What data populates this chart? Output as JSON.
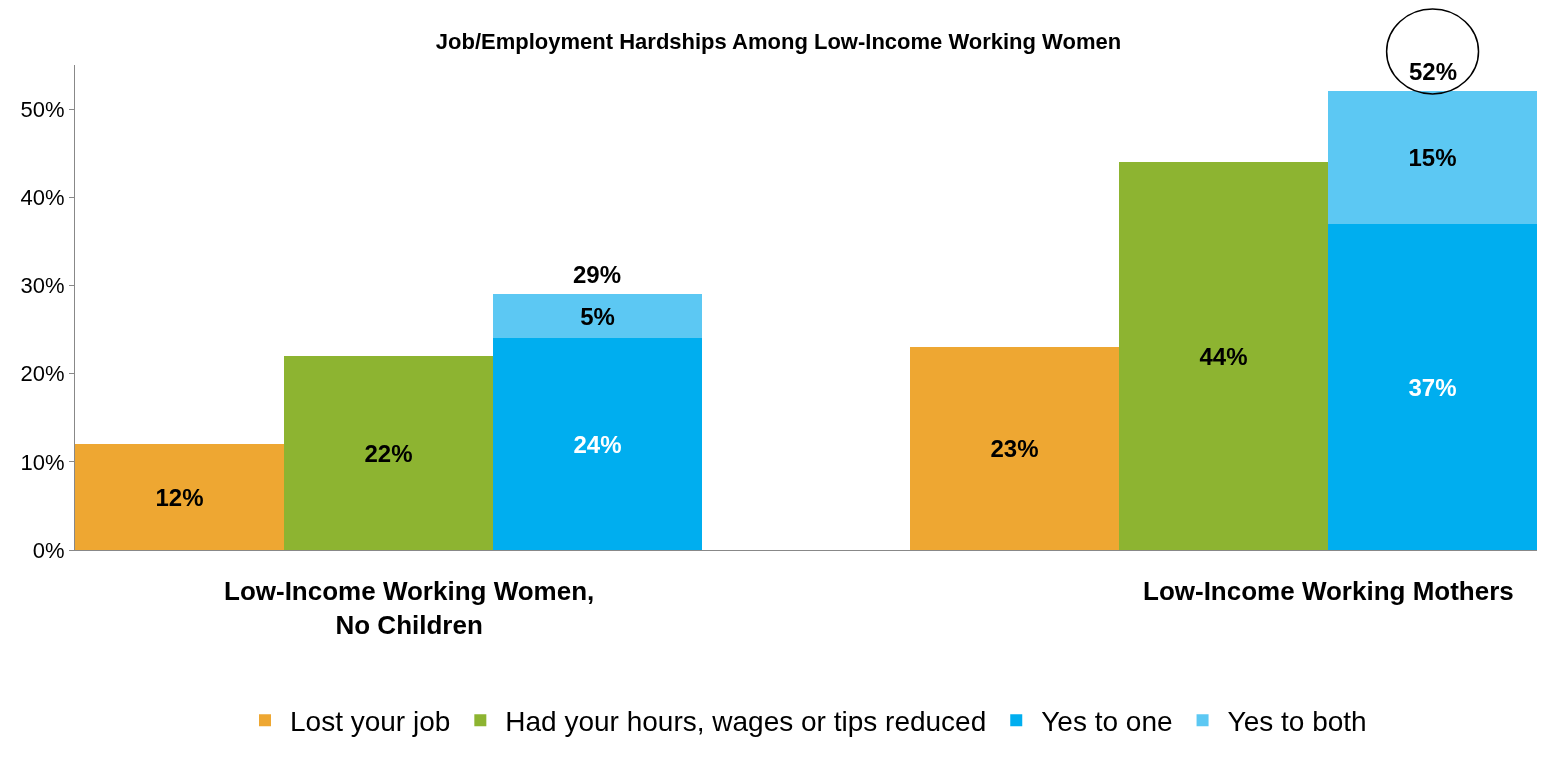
{
  "chart_data": {
    "type": "bar",
    "title": "Job/Employment Hardships Among Low-Income Working Women",
    "categories": [
      null,
      null,
      null,
      null,
      null,
      null,
      null
    ],
    "stacked": true,
    "series": [
      {
        "name": "Lost your job",
        "color": "#eea732",
        "values": [
          12,
          null,
          null,
          null,
          23,
          null,
          null
        ],
        "value_labels": [
          "12%",
          null,
          null,
          null,
          "23%",
          null,
          null
        ]
      },
      {
        "name": "Had your hours, wages or tips reduced",
        "color": "#8db431",
        "values": [
          null,
          22,
          null,
          null,
          null,
          44,
          null
        ],
        "value_labels": [
          null,
          "22%",
          null,
          null,
          null,
          "44%",
          null
        ]
      },
      {
        "name": "Yes to one",
        "color": "#00aeef",
        "values": [
          null,
          null,
          24,
          null,
          null,
          null,
          37
        ],
        "value_labels": [
          null,
          null,
          "24%",
          null,
          null,
          null,
          "37%"
        ]
      },
      {
        "name": "Yes to both",
        "color": "#5cc8f3",
        "values": [
          null,
          null,
          5,
          null,
          null,
          null,
          15
        ],
        "value_labels": [
          null,
          null,
          "5%",
          null,
          null,
          null,
          "15%"
        ]
      }
    ],
    "totals": [
      null,
      null,
      "29%",
      null,
      null,
      null,
      "52%"
    ],
    "annotations": [
      "Low-Income Working Women,\nNo Children",
      "Low-Income Working Mothers"
    ],
    "ylim": [
      0,
      55
    ],
    "yticks": [
      {
        "value": 0,
        "label": "0%"
      },
      {
        "value": 10,
        "label": "10%"
      },
      {
        "value": 20,
        "label": "20%"
      },
      {
        "value": 30,
        "label": "30%"
      },
      {
        "value": 40,
        "label": "40%"
      },
      {
        "value": 50,
        "label": "50%"
      }
    ],
    "legend": "bottom"
  }
}
